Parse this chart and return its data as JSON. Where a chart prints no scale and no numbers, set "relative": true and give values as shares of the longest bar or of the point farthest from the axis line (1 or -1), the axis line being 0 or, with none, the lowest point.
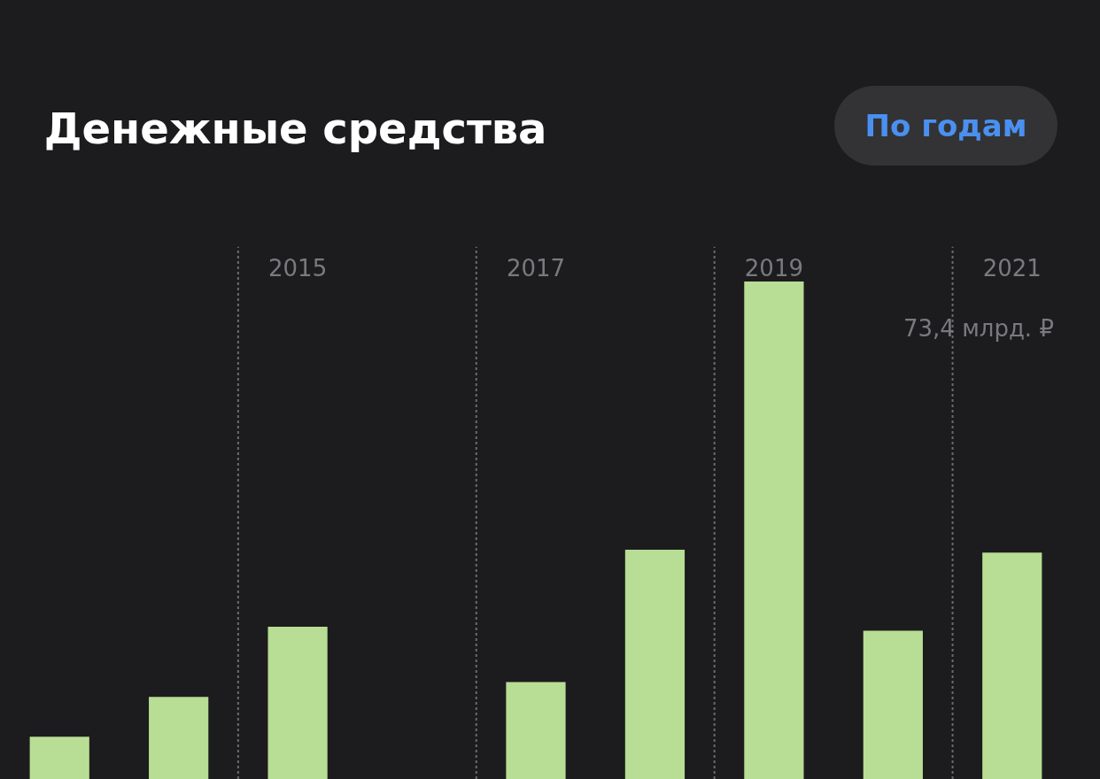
{
  "chart_data": {
    "type": "bar",
    "title": "Денежные средства",
    "categories": [
      null,
      null,
      "2015",
      null,
      "2017",
      null,
      "2019",
      null,
      "2021"
    ],
    "values": [
      0.085,
      0.165,
      0.306,
      null,
      0.195,
      0.461,
      1,
      0.298,
      0.455
    ],
    "color": "#b8dd94",
    "relative": true,
    "grid": "x",
    "annotations": [
      "73,4 млрд. ₽",
      "По годам"
    ]
  }
}
